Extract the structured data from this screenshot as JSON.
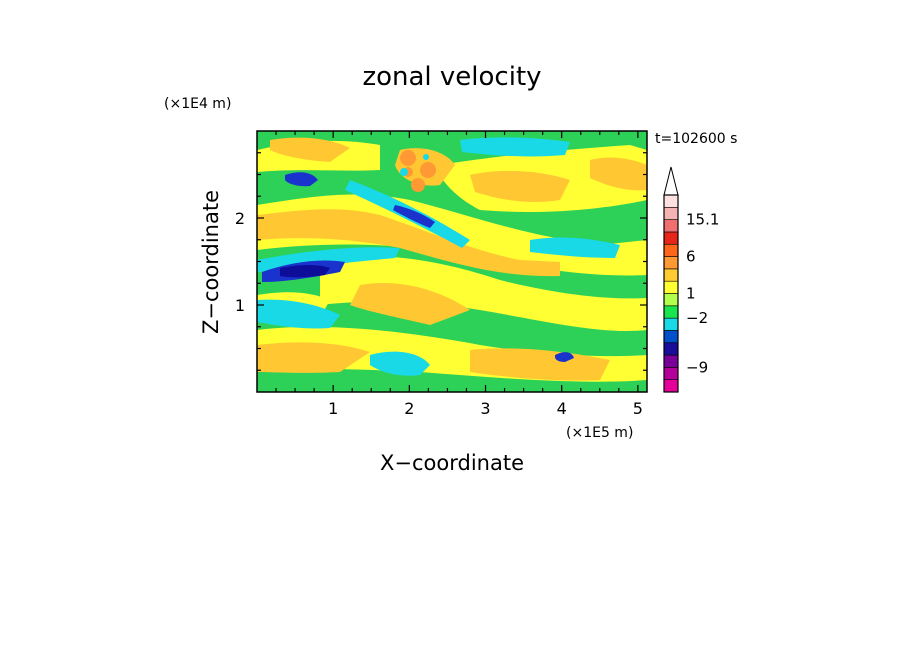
{
  "chart_data": {
    "type": "heatmap",
    "title": "zonal velocity",
    "time_label": "t=102600 s",
    "xlabel": "X−coordinate",
    "ylabel": "Z−coordinate",
    "x_scale_label": "(×1E5 m)",
    "y_scale_label": "(×1E4 m)",
    "xlim": [
      0,
      5.12
    ],
    "ylim": [
      0,
      3.0
    ],
    "x_ticks": [
      {
        "value": 1,
        "label": "1"
      },
      {
        "value": 2,
        "label": "2"
      },
      {
        "value": 3,
        "label": "3"
      },
      {
        "value": 4,
        "label": "4"
      },
      {
        "value": 5,
        "label": "5"
      }
    ],
    "y_ticks": [
      {
        "value": 1,
        "label": "1"
      },
      {
        "value": 2,
        "label": "2"
      }
    ],
    "colorbar": {
      "colors": [
        "#e6009a",
        "#b3009a",
        "#7a009a",
        "#1a0d99",
        "#0050cc",
        "#19d9e6",
        "#19e64d",
        "#b3ff4d",
        "#ffff33",
        "#ffcc33",
        "#ff9933",
        "#ff661a",
        "#e62619",
        "#f07070",
        "#f5b3b3",
        "#ffe0e0"
      ],
      "tick_labels": [
        {
          "label": "15.1",
          "index": 14
        },
        {
          "label": "6",
          "index": 11
        },
        {
          "label": "1",
          "index": 8
        },
        {
          "label": "−2",
          "index": 6
        },
        {
          "label": "−9",
          "index": 2
        }
      ]
    },
    "palette": {
      "green": "#2ed158",
      "cyan": "#19d9e6",
      "yellow": "#ffff33",
      "orange": "#ffc832",
      "dark_orange": "#ff9933",
      "blue": "#1a33cc",
      "dark_blue": "#0d0d99"
    }
  }
}
